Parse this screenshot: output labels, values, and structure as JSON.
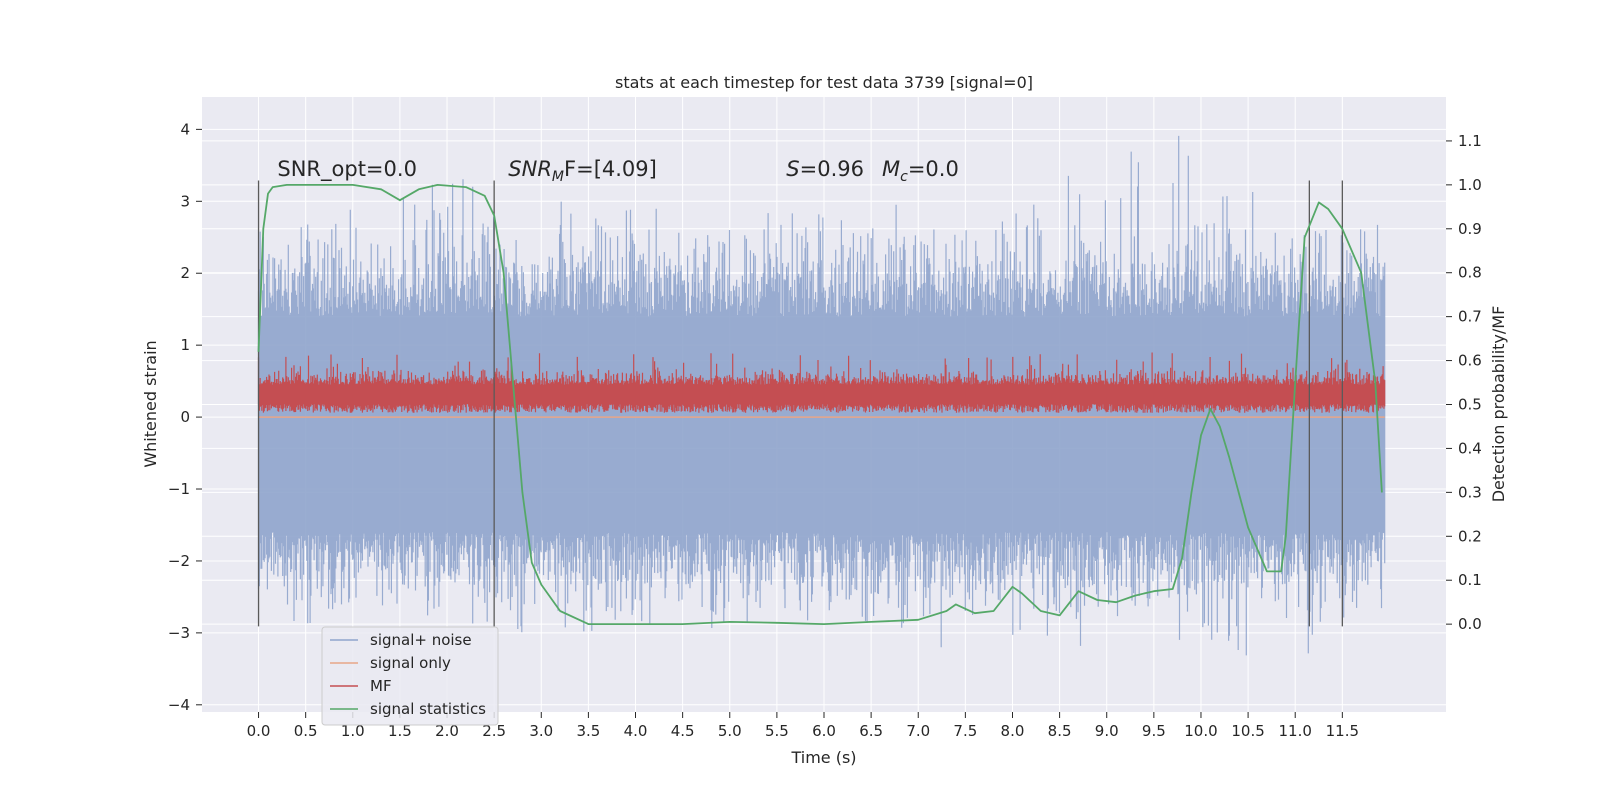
{
  "chart_data": {
    "type": "line",
    "title": "stats at each timestep for test data 3739 [signal=0]",
    "xlabel": "Time (s)",
    "ylabel_left": "Whitened strain",
    "ylabel_right": "Detection probability/MF",
    "xlim": [
      -0.6,
      12.6
    ],
    "ylim_left": [
      -4.1,
      4.45
    ],
    "ylim_right": [
      -0.2,
      1.2
    ],
    "x_ticks": [
      0.0,
      0.5,
      1.0,
      1.5,
      2.0,
      2.5,
      3.0,
      3.5,
      4.0,
      4.5,
      5.0,
      5.5,
      6.0,
      6.5,
      7.0,
      7.5,
      8.0,
      8.5,
      9.0,
      9.5,
      10.0,
      10.5,
      11.0,
      11.5
    ],
    "x_tick_labels": [
      "0.0",
      "0.5",
      "1.0",
      "1.5",
      "2.0",
      "2.5",
      "3.0",
      "3.5",
      "4.0",
      "4.5",
      "5.0",
      "5.5",
      "6.0",
      "6.5",
      "7.0",
      "7.5",
      "8.0",
      "8.5",
      "9.0",
      "9.5",
      "10.0",
      "10.5",
      "11.0",
      "11.5"
    ],
    "y_left_ticks": [
      4,
      3,
      2,
      1,
      0,
      -1,
      -2,
      -3,
      -4
    ],
    "y_left_tick_labels": [
      "4",
      "3",
      "2",
      "1",
      "0",
      "−1",
      "−2",
      "−3",
      "−4"
    ],
    "y_right_ticks": [
      1.1,
      1.0,
      0.9,
      0.8,
      0.7,
      0.6,
      0.5,
      0.4,
      0.3,
      0.2,
      0.1,
      0.0
    ],
    "y_right_tick_labels": [
      "1.1",
      "1.0",
      "0.9",
      "0.8",
      "0.7",
      "0.6",
      "0.5",
      "0.4",
      "0.3",
      "0.2",
      "0.1",
      "0.0"
    ],
    "grid": true,
    "legend_position": "lower-left",
    "series": [
      {
        "name": "signal+ noise",
        "axis": "left",
        "color": "#8fa4cc",
        "style": "dense noise trace, roughly -2.3 to 2.5 with spikes to about 4.1 and -3.7",
        "envelope_samples": {
          "x": [
            0.0,
            1.0,
            2.0,
            3.0,
            4.0,
            5.0,
            6.0,
            7.0,
            8.0,
            9.0,
            9.7,
            10.0,
            11.0,
            11.95
          ],
          "y_max": [
            2.6,
            3.0,
            3.4,
            3.0,
            3.1,
            2.9,
            2.8,
            3.0,
            3.3,
            3.5,
            4.1,
            3.3,
            3.3,
            2.4
          ],
          "y_min": [
            -2.9,
            -2.8,
            -3.1,
            -3.1,
            -2.9,
            -3.0,
            -2.8,
            -3.2,
            -3.3,
            -3.1,
            -3.0,
            -3.2,
            -3.5,
            -2.4
          ]
        }
      },
      {
        "name": "signal only",
        "axis": "left",
        "color": "#e8a688",
        "x": [
          0.0,
          11.95
        ],
        "y": [
          0.0,
          0.0
        ]
      },
      {
        "name": "MF",
        "axis": "left",
        "color": "#c44e52",
        "style": "dense trace between about 0.05 and 0.9",
        "envelope_samples": {
          "x": [
            0.0,
            11.95
          ],
          "y_max": [
            0.85,
            0.75
          ],
          "y_min": [
            0.05,
            0.05
          ]
        }
      },
      {
        "name": "signal statistics",
        "axis": "right",
        "color": "#55a868",
        "x": [
          0.0,
          0.05,
          0.1,
          0.15,
          0.3,
          0.6,
          1.0,
          1.3,
          1.5,
          1.7,
          1.9,
          2.2,
          2.4,
          2.5,
          2.6,
          2.7,
          2.8,
          2.9,
          3.0,
          3.2,
          3.5,
          4.0,
          4.5,
          5.0,
          5.5,
          6.0,
          6.5,
          7.0,
          7.3,
          7.4,
          7.6,
          7.8,
          8.0,
          8.1,
          8.3,
          8.5,
          8.7,
          8.9,
          9.1,
          9.3,
          9.5,
          9.7,
          9.8,
          9.9,
          10.0,
          10.1,
          10.2,
          10.3,
          10.5,
          10.7,
          10.85,
          10.9,
          11.0,
          11.1,
          11.25,
          11.35,
          11.5,
          11.7,
          11.85,
          11.92
        ],
        "y": [
          0.62,
          0.9,
          0.98,
          0.995,
          1.0,
          1.0,
          1.0,
          0.99,
          0.965,
          0.99,
          1.0,
          0.995,
          0.975,
          0.93,
          0.8,
          0.55,
          0.3,
          0.14,
          0.09,
          0.03,
          0.0,
          0.0,
          0.0,
          0.005,
          0.003,
          0.0,
          0.005,
          0.01,
          0.03,
          0.045,
          0.025,
          0.03,
          0.085,
          0.07,
          0.03,
          0.02,
          0.075,
          0.055,
          0.05,
          0.065,
          0.075,
          0.08,
          0.15,
          0.3,
          0.43,
          0.49,
          0.45,
          0.38,
          0.22,
          0.12,
          0.12,
          0.2,
          0.55,
          0.88,
          0.96,
          0.945,
          0.9,
          0.8,
          0.55,
          0.3
        ]
      }
    ],
    "vertical_lines": {
      "color": "#5a5a5a",
      "x": [
        0.0,
        2.5,
        11.15,
        11.5
      ]
    },
    "annotations": [
      {
        "id": "snr-opt",
        "text": "SNR_opt=0.0",
        "x": 0.2,
        "y_right": 1.02
      },
      {
        "id": "snr-mf",
        "text": "SNR",
        "sub": "M",
        "rest": "F=[4.09]",
        "x": 2.65,
        "y_right": 1.02
      },
      {
        "id": "s-mc",
        "s_label": "S",
        "s_value": "=0.96",
        "m_label": "M",
        "m_sub": "c",
        "m_value": "=0.0",
        "x": 5.6,
        "y_right": 1.02
      }
    ]
  },
  "legend": {
    "entries": [
      {
        "label": "signal+ noise",
        "color": "#8fa4cc"
      },
      {
        "label": "signal only",
        "color": "#e8a688"
      },
      {
        "label": "MF",
        "color": "#c44e52"
      },
      {
        "label": "signal statistics",
        "color": "#55a868"
      }
    ]
  },
  "colors": {
    "plot_background": "#eaeaf2",
    "grid": "#ffffff",
    "text": "#262626"
  }
}
